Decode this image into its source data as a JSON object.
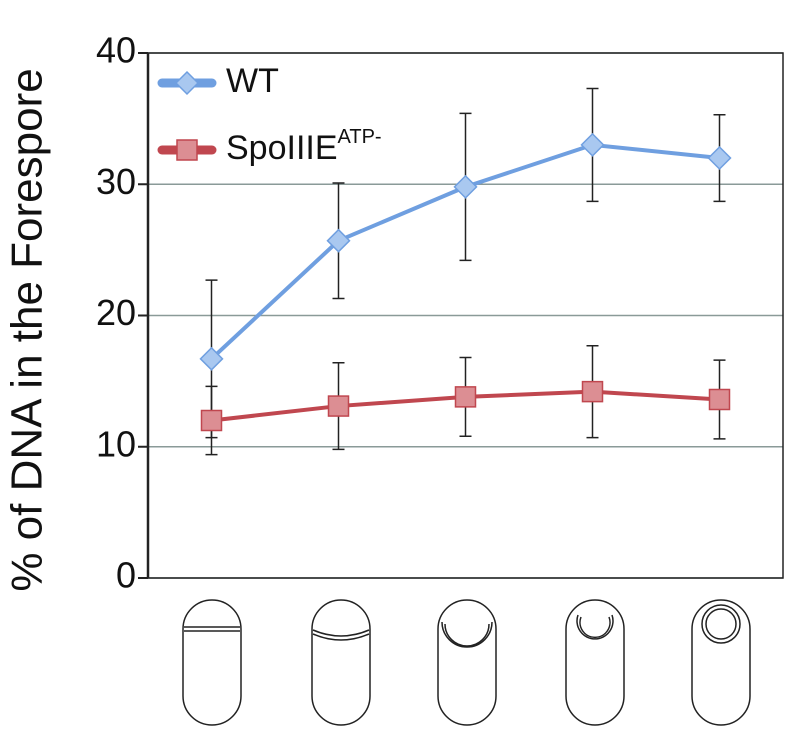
{
  "chart_data": {
    "type": "line",
    "y_label": "% of DNA in the Forespore",
    "categories": [
      null,
      null,
      null,
      null,
      null
    ],
    "series": [
      {
        "name": "WT",
        "color": "#6f9fe0",
        "marker": "diamond",
        "values": [
          16.7,
          25.7,
          29.8,
          33,
          32
        ],
        "errors": [
          6,
          4.4,
          5.6,
          4.3,
          3.3
        ]
      },
      {
        "name": "SpoIIIE",
        "name_superscript": "ATP-",
        "color": "#c0474f",
        "marker": "square",
        "values": [
          12,
          13.1,
          13.8,
          14.2,
          13.6
        ],
        "errors": [
          2.6,
          3.3,
          3,
          3.5,
          3
        ]
      }
    ],
    "ylim": [
      0,
      40
    ],
    "yticks": [
      0,
      10,
      20,
      30,
      40
    ],
    "grid": true,
    "legend": "upper left"
  }
}
